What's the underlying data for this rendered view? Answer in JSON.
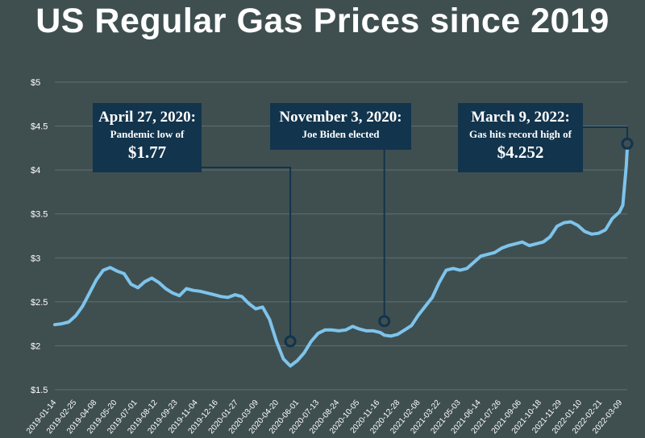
{
  "title": "US Regular Gas Prices since 2019",
  "chart_data": {
    "type": "line",
    "title": "US Regular Gas Prices since 2019",
    "xlabel": "",
    "ylabel": "",
    "ylim": [
      1.5,
      5
    ],
    "y_ticks": [
      "$1.5",
      "$2",
      "$2.5",
      "$3",
      "$3.5",
      "$4",
      "$4.5",
      "$5"
    ],
    "y_tick_values": [
      1.5,
      2,
      2.5,
      3,
      3.5,
      4,
      4.5,
      5
    ],
    "grid": true,
    "x_tick_labels": [
      "2019-01-14",
      "2019-02-25",
      "2019-04-08",
      "2019-05-20",
      "2019-07-01",
      "2019-08-12",
      "2019-09-23",
      "2019-11-04",
      "2019-12-16",
      "2020-01-27",
      "2020-03-09",
      "2020-04-20",
      "2020-06-01",
      "2020-07-13",
      "2020-08-24",
      "2020-10-05",
      "2020-11-16",
      "2020-12-28",
      "2021-02-08",
      "2021-03-22",
      "2021-05-03",
      "2021-06-14",
      "2021-07-26",
      "2021-09-06",
      "2021-10-18",
      "2021-11-29",
      "2022-01-10",
      "2022-02-21",
      "2022-03-09"
    ],
    "series": [
      {
        "color": "#7ec4ec",
        "x": [
          "2019-01-07",
          "2019-01-21",
          "2019-02-04",
          "2019-02-18",
          "2019-03-04",
          "2019-03-18",
          "2019-04-01",
          "2019-04-15",
          "2019-04-29",
          "2019-05-13",
          "2019-05-27",
          "2019-06-10",
          "2019-06-24",
          "2019-07-08",
          "2019-07-22",
          "2019-08-05",
          "2019-08-19",
          "2019-09-02",
          "2019-09-16",
          "2019-09-30",
          "2019-10-14",
          "2019-10-28",
          "2019-11-11",
          "2019-11-25",
          "2019-12-09",
          "2019-12-23",
          "2020-01-06",
          "2020-01-20",
          "2020-02-03",
          "2020-02-17",
          "2020-03-02",
          "2020-03-16",
          "2020-03-30",
          "2020-04-13",
          "2020-04-27",
          "2020-05-11",
          "2020-05-25",
          "2020-06-08",
          "2020-06-22",
          "2020-07-06",
          "2020-07-20",
          "2020-08-03",
          "2020-08-17",
          "2020-08-31",
          "2020-09-14",
          "2020-09-28",
          "2020-10-12",
          "2020-10-26",
          "2020-11-03",
          "2020-11-16",
          "2020-11-30",
          "2020-12-14",
          "2020-12-28",
          "2021-01-11",
          "2021-01-25",
          "2021-02-08",
          "2021-02-22",
          "2021-03-08",
          "2021-03-22",
          "2021-04-05",
          "2021-04-19",
          "2021-05-03",
          "2021-05-17",
          "2021-05-31",
          "2021-06-14",
          "2021-06-28",
          "2021-07-12",
          "2021-07-26",
          "2021-08-09",
          "2021-08-23",
          "2021-09-06",
          "2021-09-20",
          "2021-10-04",
          "2021-10-18",
          "2021-11-01",
          "2021-11-15",
          "2021-11-29",
          "2021-12-13",
          "2021-12-27",
          "2022-01-10",
          "2022-01-24",
          "2022-02-07",
          "2022-02-21",
          "2022-02-28",
          "2022-03-07",
          "2022-03-09"
        ],
        "y": [
          2.24,
          2.25,
          2.27,
          2.34,
          2.45,
          2.6,
          2.75,
          2.86,
          2.89,
          2.85,
          2.82,
          2.7,
          2.66,
          2.73,
          2.77,
          2.72,
          2.65,
          2.6,
          2.57,
          2.65,
          2.63,
          2.62,
          2.6,
          2.58,
          2.56,
          2.55,
          2.58,
          2.56,
          2.48,
          2.42,
          2.44,
          2.3,
          2.05,
          1.85,
          1.77,
          1.83,
          1.92,
          2.05,
          2.14,
          2.18,
          2.18,
          2.17,
          2.18,
          2.22,
          2.19,
          2.17,
          2.17,
          2.15,
          2.12,
          2.11,
          2.13,
          2.18,
          2.23,
          2.35,
          2.45,
          2.55,
          2.72,
          2.86,
          2.88,
          2.86,
          2.88,
          2.95,
          3.02,
          3.04,
          3.06,
          3.11,
          3.14,
          3.16,
          3.18,
          3.14,
          3.16,
          3.18,
          3.24,
          3.36,
          3.4,
          3.41,
          3.37,
          3.3,
          3.27,
          3.28,
          3.32,
          3.45,
          3.52,
          3.6,
          4.05,
          4.25
        ]
      }
    ],
    "annotations": [
      {
        "head": "April 27, 2020:",
        "sub": "Pandemic low of",
        "big": "$1.77",
        "x": "2020-04-27",
        "y": 2.05
      },
      {
        "head": "November 3, 2020:",
        "sub": "Joe Biden elected",
        "big": "",
        "x": "2020-11-03",
        "y": 2.28
      },
      {
        "head": "March 9, 2022:",
        "sub": "Gas hits record high of",
        "big": "$4.252",
        "x": "2022-03-09",
        "y": 4.3
      }
    ]
  }
}
